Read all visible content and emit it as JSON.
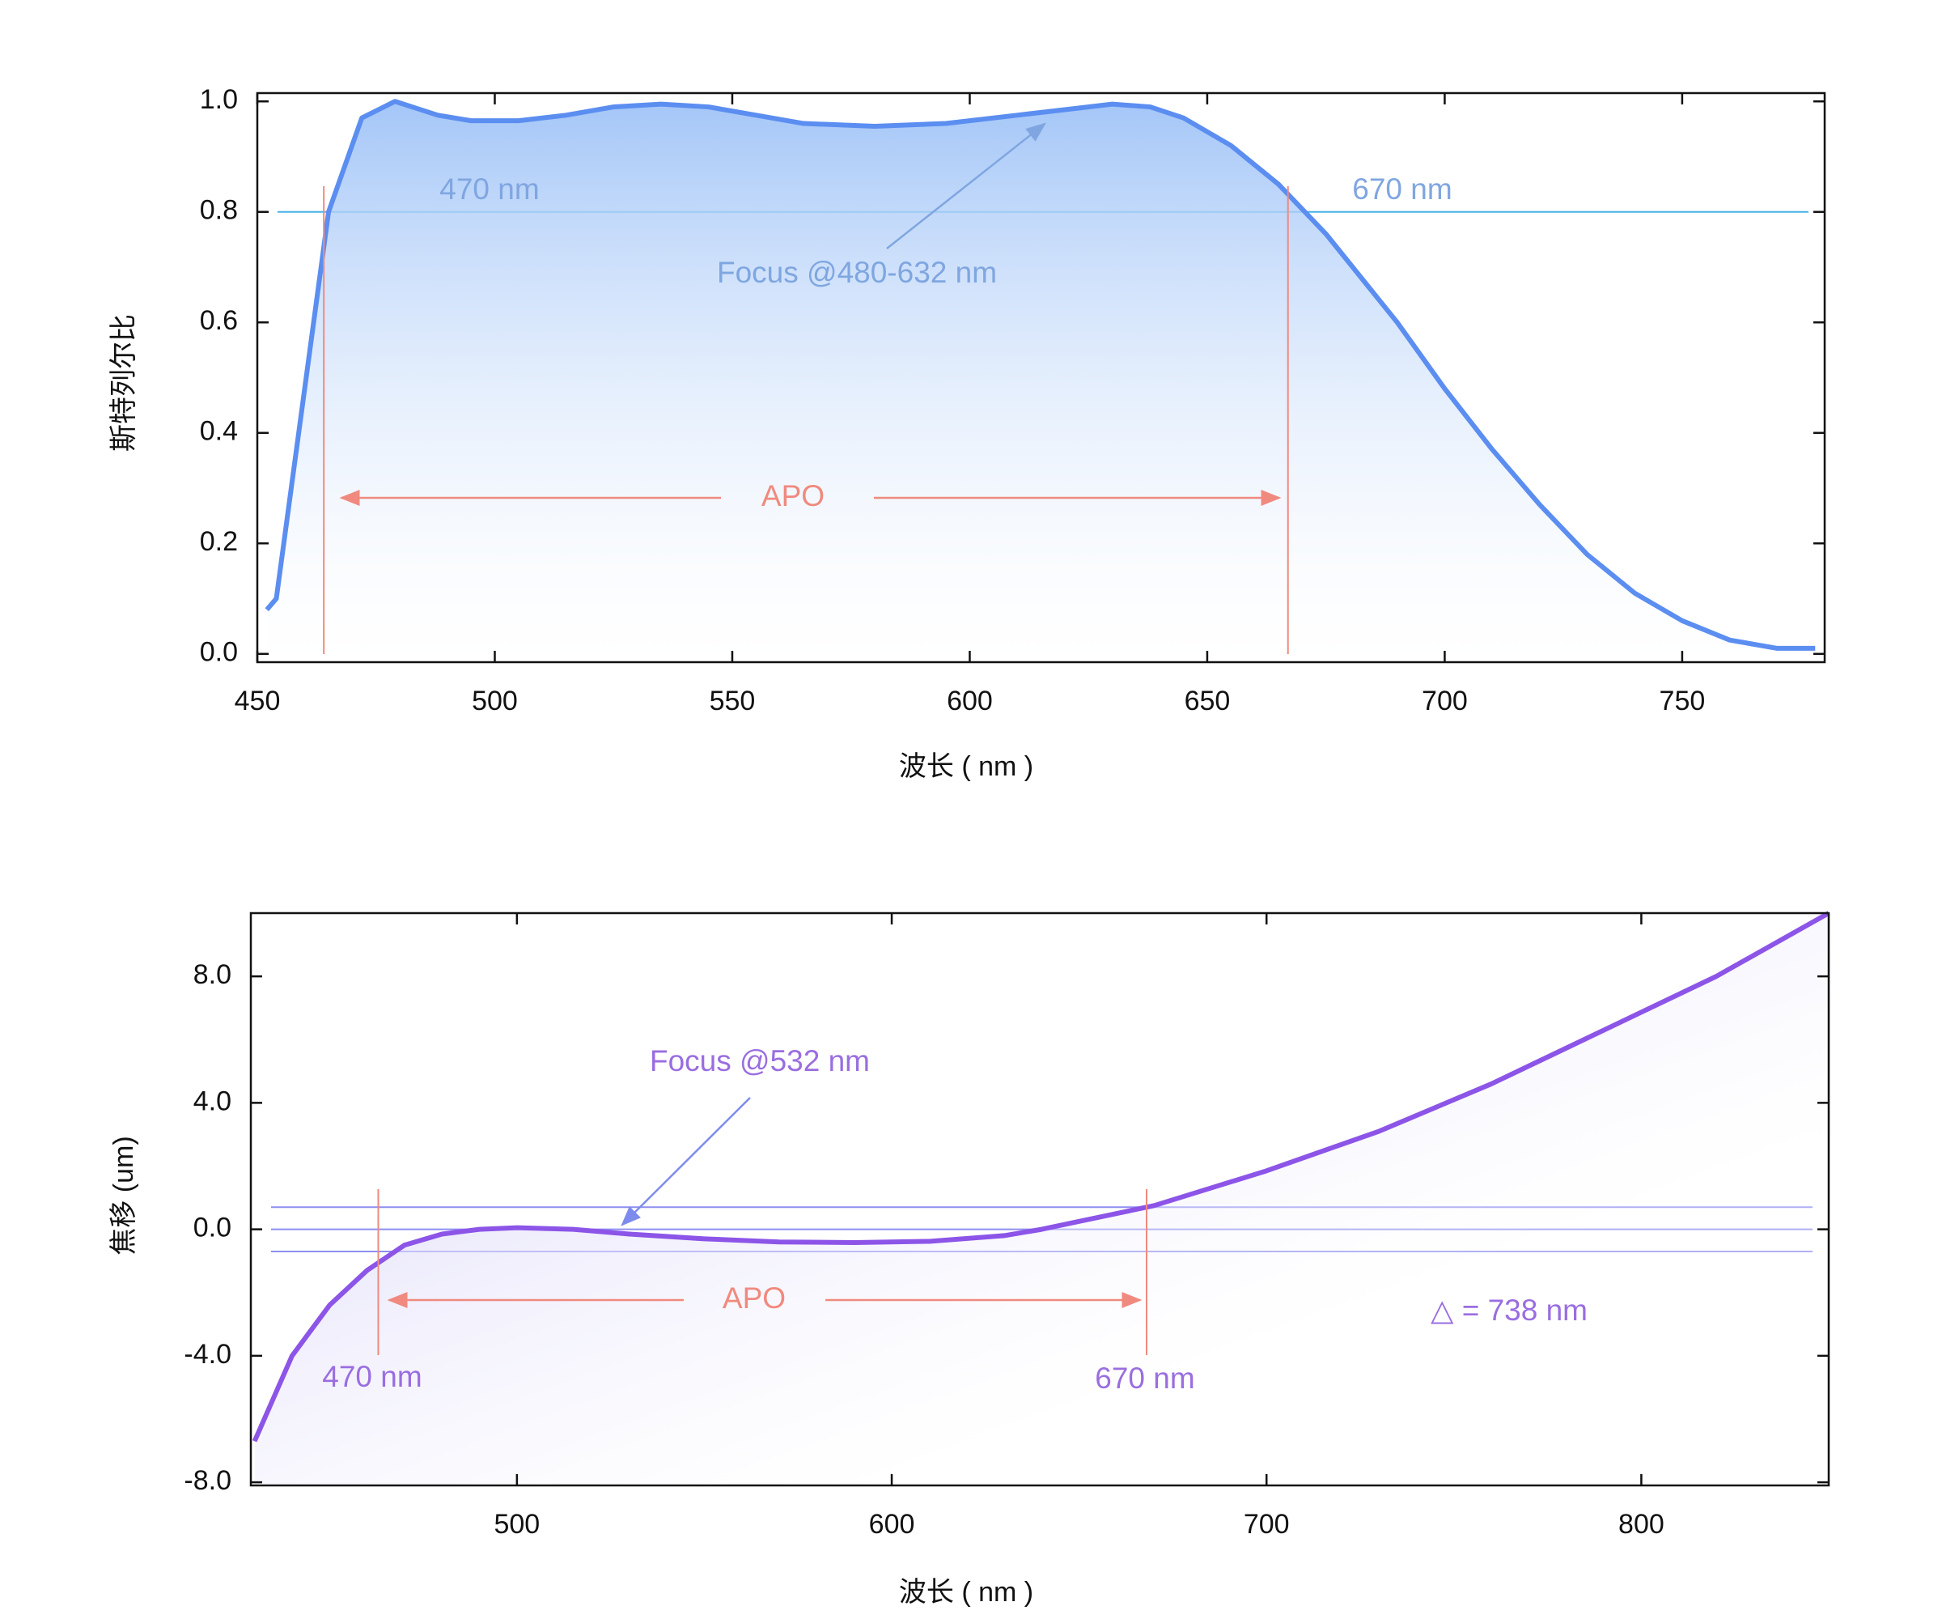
{
  "chart_data": [
    {
      "type": "line",
      "color": "#5b8ef0",
      "fill": "#9fc3f7",
      "y_label": "斯特列尔比",
      "x_label": "波长 ( nm )",
      "xlim": [
        450,
        780
      ],
      "xticks": [
        450,
        500,
        550,
        600,
        650,
        700,
        750
      ],
      "ylim": [
        -0.015,
        1.015
      ],
      "yticks": [
        {
          "value": 0,
          "label": "0.0"
        },
        0.2,
        0.4,
        0.6,
        0.8,
        {
          "value": 1,
          "label": "1.0"
        }
      ],
      "x": [
        452,
        454,
        465,
        472,
        479,
        488,
        495,
        505,
        515,
        525,
        535,
        545,
        555,
        565,
        580,
        595,
        610,
        620,
        630,
        638,
        645,
        655,
        665,
        675,
        690,
        700,
        710,
        720,
        730,
        740,
        750,
        760,
        770,
        778
      ],
      "values": [
        0.08,
        0.1,
        0.8,
        0.97,
        1.0,
        0.975,
        0.965,
        0.965,
        0.975,
        0.99,
        0.995,
        0.99,
        0.975,
        0.96,
        0.955,
        0.96,
        0.975,
        0.985,
        0.995,
        0.99,
        0.97,
        0.92,
        0.85,
        0.76,
        0.6,
        0.48,
        0.37,
        0.27,
        0.18,
        0.11,
        0.06,
        0.025,
        0.01,
        0.01
      ],
      "hlines": [
        0.8
      ],
      "vlines": [
        464,
        667
      ],
      "annotations": [
        "470 nm",
        "670 nm",
        "Focus @480-632 nm",
        "APO"
      ]
    },
    {
      "type": "line",
      "color": "#8c55e8",
      "fill": "#c9c3f5",
      "y_label": "焦移 (um)",
      "x_label": "波长 ( nm )",
      "xlim": [
        429,
        850
      ],
      "xticks": [
        500,
        600,
        700,
        800
      ],
      "ylim": [
        -8.1,
        10
      ],
      "yticks": [
        {
          "value": -8,
          "label": "-8.0"
        },
        {
          "value": -4,
          "label": "-4.0"
        },
        {
          "value": 0,
          "label": "0.0"
        },
        {
          "value": 4,
          "label": "4.0"
        },
        {
          "value": 8,
          "label": "8.0"
        }
      ],
      "x": [
        430,
        440,
        450,
        460,
        470,
        480,
        490,
        500,
        515,
        530,
        550,
        570,
        590,
        610,
        630,
        640,
        650,
        670,
        700,
        730,
        760,
        790,
        820,
        850
      ],
      "values": [
        -6.7,
        -4.0,
        -2.4,
        -1.3,
        -0.5,
        -0.15,
        0.0,
        0.05,
        0.0,
        -0.15,
        -0.3,
        -0.4,
        -0.42,
        -0.38,
        -0.2,
        0.0,
        0.25,
        0.75,
        1.85,
        3.1,
        4.6,
        6.3,
        8.0,
        10.0
      ],
      "hlines": [
        0.7,
        0,
        -0.7
      ],
      "vlines": [
        463,
        668
      ],
      "annotations": [
        "Focus @532 nm",
        "APO",
        "470 nm",
        "670 nm",
        "△ = 738 nm"
      ]
    }
  ]
}
